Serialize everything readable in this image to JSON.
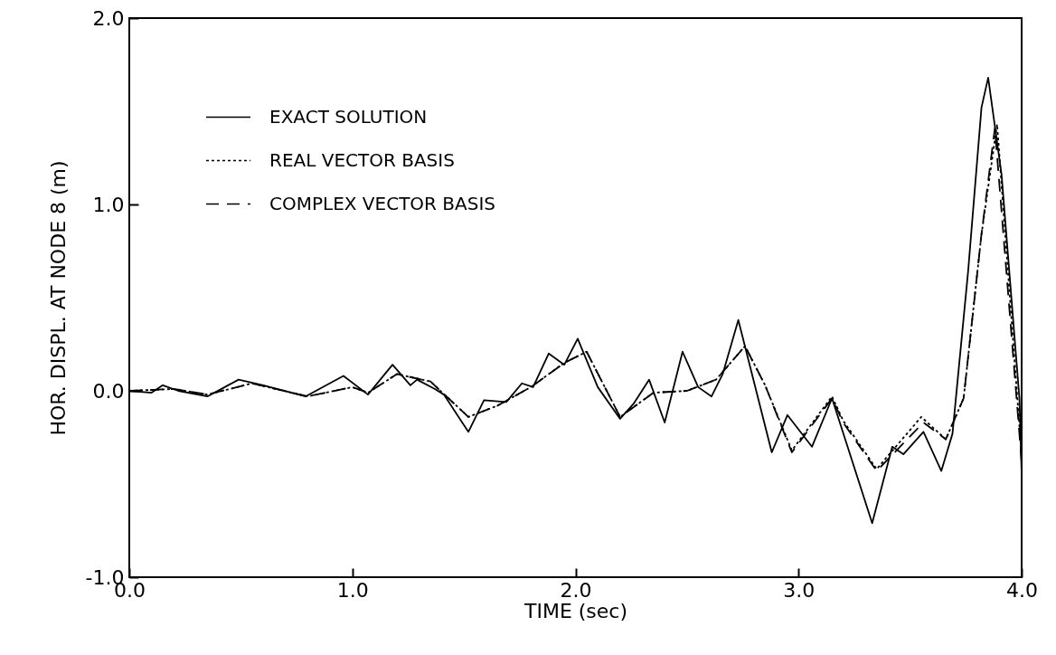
{
  "chart_data": {
    "type": "line",
    "xlabel": "TIME    (sec)",
    "ylabel": "HOR. DISPL. AT NODE 8    (m)",
    "xlim": [
      0,
      4
    ],
    "ylim": [
      -1,
      2
    ],
    "xticks": [
      {
        "value": 0,
        "label": "0.0"
      },
      {
        "value": 1,
        "label": "1.0"
      },
      {
        "value": 2,
        "label": "2.0"
      },
      {
        "value": 3,
        "label": "3.0"
      },
      {
        "value": 4,
        "label": "4.0"
      }
    ],
    "yticks": [
      {
        "value": -1,
        "label": "-1.0"
      },
      {
        "value": 0,
        "label": "0.0"
      },
      {
        "value": 1,
        "label": "1.0"
      },
      {
        "value": 2,
        "label": "2.0"
      }
    ],
    "grid": false,
    "legend": "top left",
    "series": [
      {
        "name": "EXACT SOLUTION",
        "color": "#000000",
        "line_style": "solid",
        "x": [
          0,
          0.1,
          0.15,
          0.22,
          0.35,
          0.49,
          0.6,
          0.79,
          0.96,
          1.07,
          1.18,
          1.26,
          1.29,
          1.37,
          1.41,
          1.52,
          1.59,
          1.69,
          1.76,
          1.81,
          1.88,
          1.95,
          2.01,
          2.1,
          2.2,
          2.26,
          2.33,
          2.4,
          2.48,
          2.55,
          2.61,
          2.66,
          2.73,
          2.88,
          2.95,
          3.06,
          3.15,
          3.33,
          3.42,
          3.47,
          3.56,
          3.64,
          3.69,
          3.76,
          3.82,
          3.85,
          3.91,
          3.99,
          4.0
        ],
        "values": [
          0,
          -0.01,
          0.03,
          0.0,
          -0.03,
          0.06,
          0.03,
          -0.03,
          0.08,
          -0.02,
          0.14,
          0.03,
          0.06,
          0.01,
          -0.02,
          -0.22,
          -0.05,
          -0.06,
          0.04,
          0.02,
          0.2,
          0.14,
          0.28,
          0.02,
          -0.15,
          -0.07,
          0.06,
          -0.17,
          0.21,
          0.02,
          -0.03,
          0.09,
          0.38,
          -0.33,
          -0.13,
          -0.3,
          -0.04,
          -0.71,
          -0.3,
          -0.34,
          -0.22,
          -0.43,
          -0.23,
          0.64,
          1.52,
          1.68,
          1.16,
          -0.04,
          -0.45
        ]
      },
      {
        "name": "REAL VECTOR BASIS",
        "color": "#000000",
        "line_style": "dotted",
        "x": [
          0,
          0.2,
          0.35,
          0.55,
          0.8,
          1.0,
          1.07,
          1.2,
          1.35,
          1.52,
          1.65,
          1.8,
          1.95,
          2.05,
          2.2,
          2.35,
          2.5,
          2.63,
          2.76,
          2.85,
          2.97,
          3.15,
          3.2,
          3.35,
          3.55,
          3.66,
          3.74,
          3.82,
          3.89,
          4.0
        ],
        "values": [
          0,
          0.01,
          -0.02,
          0.04,
          -0.03,
          0.02,
          -0.01,
          0.09,
          0.05,
          -0.14,
          -0.08,
          0.02,
          0.15,
          0.21,
          -0.14,
          -0.01,
          0.0,
          0.06,
          0.24,
          0.03,
          -0.32,
          -0.03,
          -0.16,
          -0.42,
          -0.14,
          -0.26,
          -0.04,
          0.84,
          1.43,
          -0.35
        ]
      },
      {
        "name": "COMPLEX VECTOR BASIS",
        "color": "#000000",
        "line_style": "dashed",
        "x": [
          0,
          0.2,
          0.35,
          0.55,
          0.8,
          1.0,
          1.07,
          1.2,
          1.35,
          1.52,
          1.65,
          1.8,
          1.95,
          2.05,
          2.2,
          2.35,
          2.5,
          2.63,
          2.76,
          2.85,
          2.97,
          3.15,
          3.2,
          3.35,
          3.56,
          3.66,
          3.74,
          3.82,
          3.88,
          4.0
        ],
        "values": [
          0,
          0.01,
          -0.02,
          0.04,
          -0.03,
          0.02,
          -0.01,
          0.09,
          0.05,
          -0.14,
          -0.08,
          0.02,
          0.15,
          0.21,
          -0.14,
          -0.01,
          0.0,
          0.06,
          0.24,
          0.03,
          -0.33,
          -0.04,
          -0.17,
          -0.43,
          -0.17,
          -0.26,
          -0.04,
          0.84,
          1.41,
          -0.38
        ]
      }
    ]
  }
}
